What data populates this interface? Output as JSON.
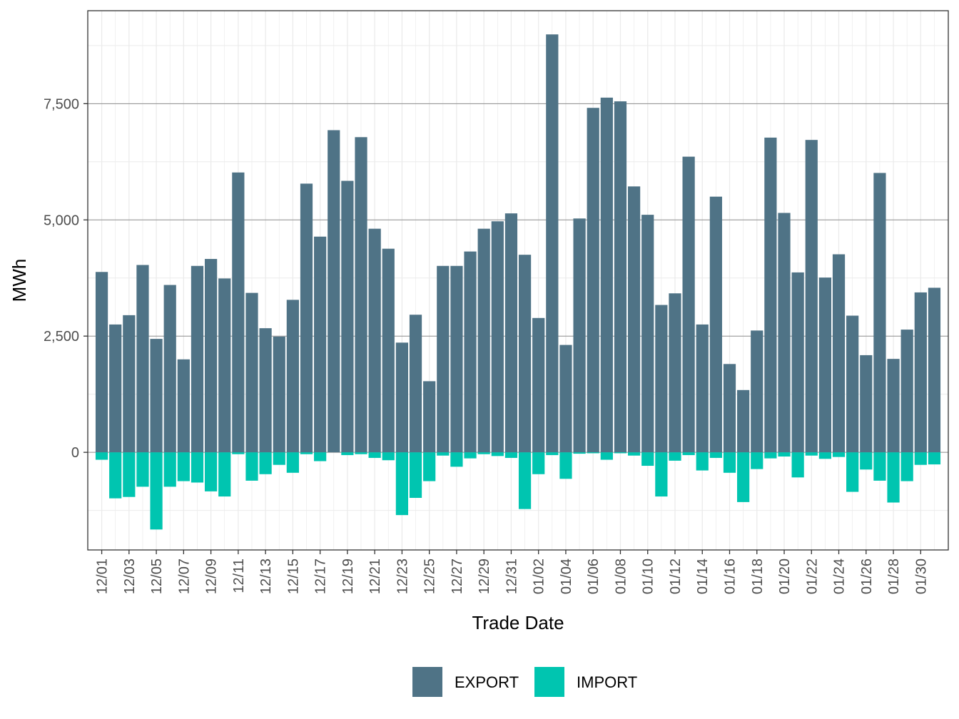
{
  "chart_data": {
    "type": "bar",
    "stacked": true,
    "xlabel": "Trade Date",
    "ylabel": "MWh",
    "ylim": [
      -2100,
      9500
    ],
    "yticks": [
      0,
      2500,
      5000,
      7500
    ],
    "ytick_labels": [
      "0",
      "2,500",
      "5,000",
      "7,500"
    ],
    "grid": true,
    "legend_position": "bottom",
    "categories": [
      "12/01",
      "12/02",
      "12/03",
      "12/04",
      "12/05",
      "12/06",
      "12/07",
      "12/08",
      "12/09",
      "12/10",
      "12/11",
      "12/12",
      "12/13",
      "12/14",
      "12/15",
      "12/16",
      "12/17",
      "12/18",
      "12/19",
      "12/20",
      "12/21",
      "12/22",
      "12/23",
      "12/24",
      "12/25",
      "12/26",
      "12/27",
      "12/28",
      "12/29",
      "12/30",
      "12/31",
      "01/01",
      "01/02",
      "01/03",
      "01/04",
      "01/05",
      "01/06",
      "01/07",
      "01/08",
      "01/09",
      "01/10",
      "01/11",
      "01/12",
      "01/13",
      "01/14",
      "01/15",
      "01/16",
      "01/17",
      "01/18",
      "01/19",
      "01/20",
      "01/21",
      "01/22",
      "01/23",
      "01/24",
      "01/25",
      "01/26",
      "01/27",
      "01/28",
      "01/29",
      "01/30",
      "01/31"
    ],
    "xtick_labels": [
      "12/01",
      "12/03",
      "12/05",
      "12/07",
      "12/09",
      "12/11",
      "12/13",
      "12/15",
      "12/17",
      "12/19",
      "12/21",
      "12/23",
      "12/25",
      "12/27",
      "12/29",
      "12/31",
      "01/02",
      "01/04",
      "01/06",
      "01/08",
      "01/10",
      "01/12",
      "01/14",
      "01/16",
      "01/18",
      "01/20",
      "01/22",
      "01/24",
      "01/26",
      "01/28",
      "01/30"
    ],
    "series": [
      {
        "name": "EXPORT",
        "color": "#4f7386",
        "values": [
          3880,
          2750,
          2950,
          4030,
          2440,
          3600,
          2000,
          4010,
          4160,
          3740,
          6020,
          3430,
          2670,
          2490,
          3280,
          5780,
          4640,
          6930,
          5840,
          6780,
          4810,
          4380,
          2360,
          2960,
          1530,
          4010,
          4010,
          4320,
          4810,
          4970,
          5140,
          4250,
          2890,
          8990,
          2310,
          5030,
          7410,
          7630,
          7550,
          5720,
          5110,
          3170,
          3420,
          6360,
          2750,
          5500,
          1900,
          1340,
          2620,
          6770,
          5150,
          3870,
          6720,
          3760,
          4260,
          2940,
          2090,
          6010,
          2010,
          2640,
          3440,
          3540
        ]
      },
      {
        "name": "IMPORT",
        "color": "#00c5b0",
        "values": [
          -160,
          -990,
          -960,
          -740,
          -1660,
          -740,
          -620,
          -650,
          -840,
          -950,
          -40,
          -610,
          -470,
          -270,
          -440,
          -40,
          -190,
          0,
          -60,
          -40,
          -120,
          -170,
          -1350,
          -980,
          -620,
          -70,
          -310,
          -130,
          -40,
          -80,
          -120,
          -1220,
          -470,
          -60,
          -570,
          -30,
          -20,
          -160,
          -20,
          -70,
          -290,
          -950,
          -180,
          -60,
          -390,
          -120,
          -440,
          -1070,
          -360,
          -130,
          -90,
          -540,
          -70,
          -140,
          -100,
          -850,
          -370,
          -610,
          -1080,
          -620,
          -270,
          -260
        ]
      }
    ]
  }
}
